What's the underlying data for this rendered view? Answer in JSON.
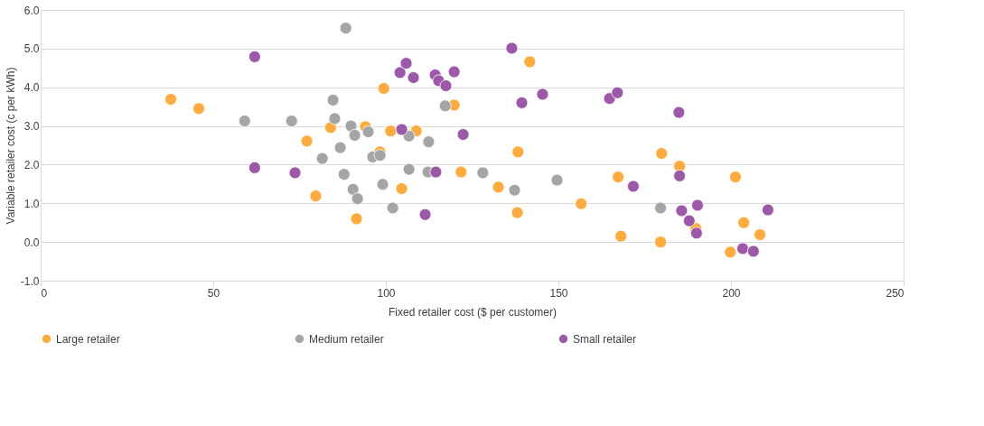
{
  "chart_data": {
    "type": "scatter",
    "xlabel": "Fixed retailer cost ($ per customer)",
    "ylabel": "Variable retailer cost (c per kWh)",
    "xlim": [
      0,
      250
    ],
    "xticks": [
      0,
      50,
      100,
      150,
      200,
      250
    ],
    "ylim": [
      -1,
      6
    ],
    "yticks": [
      {
        "value": -1,
        "label": "-1.0"
      },
      {
        "value": 0,
        "label": "0.0"
      },
      {
        "value": 1,
        "label": "1.0"
      },
      {
        "value": 2,
        "label": "2.0"
      },
      {
        "value": 3,
        "label": "3.0"
      },
      {
        "value": 4,
        "label": "4.0"
      },
      {
        "value": 5,
        "label": "5.0"
      },
      {
        "value": 6,
        "label": "6.0"
      }
    ],
    "grid": "y",
    "legend": "bottom",
    "marker": "circle",
    "series": [
      {
        "name": "Large retailer",
        "color": "#ffab40",
        "x": [
          37.7,
          45.8,
          77.1,
          84.0,
          79.7,
          91.5,
          94.1,
          98.3,
          99.4,
          101.4,
          104.6,
          108.8,
          119.8,
          121.8,
          132.6,
          138.3,
          138.1,
          141.7,
          156.6,
          167.3,
          168.1,
          179.9,
          179.6,
          185.1,
          189.8,
          201.3,
          203.7,
          208.4,
          199.8
        ],
        "values": [
          3.69,
          3.45,
          2.61,
          2.96,
          1.19,
          0.6,
          2.98,
          2.33,
          3.97,
          2.87,
          1.38,
          2.87,
          3.54,
          1.81,
          1.42,
          2.33,
          0.76,
          4.66,
          0.99,
          1.68,
          0.15,
          2.29,
          0.0,
          1.96,
          0.35,
          1.68,
          0.5,
          0.19,
          -0.26
        ]
      },
      {
        "name": "Medium retailer",
        "color": "#a5a5a5",
        "x": [
          59.1,
          72.7,
          84.7,
          85.2,
          81.6,
          86.8,
          88.4,
          87.9,
          89.9,
          91.0,
          90.5,
          91.8,
          94.9,
          96.2,
          98.3,
          99.1,
          102.0,
          106.7,
          106.7,
          112.4,
          112.2,
          117.2,
          128.1,
          137.3,
          149.6,
          179.6
        ],
        "values": [
          3.13,
          3.13,
          3.67,
          3.19,
          2.16,
          2.44,
          5.53,
          1.75,
          3.0,
          2.76,
          1.36,
          1.12,
          2.85,
          2.2,
          2.24,
          1.49,
          0.88,
          2.74,
          1.88,
          2.59,
          1.81,
          3.52,
          1.79,
          1.34,
          1.6,
          0.88
        ]
      },
      {
        "name": "Small retailer",
        "color": "#9b59a7",
        "x": [
          62.0,
          62.0,
          73.7,
          104.1,
          105.9,
          108.0,
          104.6,
          114.3,
          115.3,
          117.4,
          119.8,
          122.4,
          114.5,
          111.4,
          136.5,
          139.4,
          145.4,
          164.8,
          167.1,
          171.7,
          184.9,
          185.1,
          185.7,
          190.3,
          187.9,
          190.0,
          210.7,
          203.4,
          206.5
        ],
        "values": [
          4.79,
          1.92,
          1.79,
          4.38,
          4.62,
          4.25,
          2.91,
          4.32,
          4.17,
          4.04,
          4.4,
          2.78,
          1.81,
          0.71,
          5.01,
          3.6,
          3.82,
          3.71,
          3.86,
          1.44,
          3.35,
          1.71,
          0.81,
          0.95,
          0.55,
          0.23,
          0.83,
          -0.17,
          -0.24
        ]
      }
    ]
  }
}
